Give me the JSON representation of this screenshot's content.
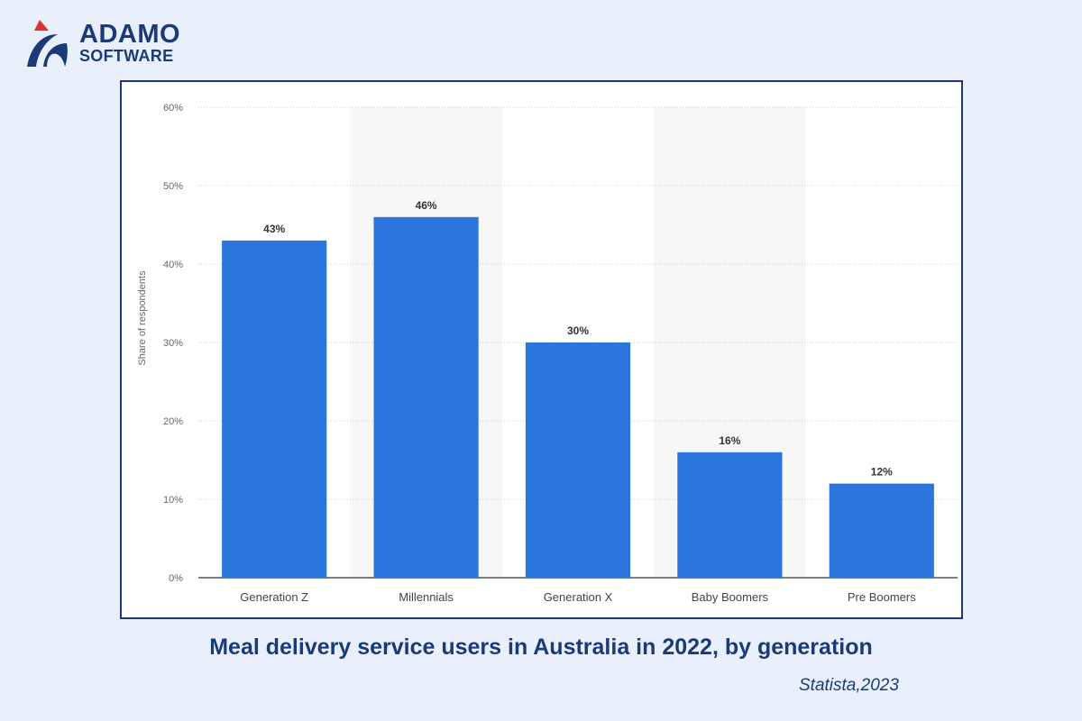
{
  "logo": {
    "line1": "ADAMO",
    "line2": "SOFTWARE",
    "colors": {
      "navy": "#1b3a7a",
      "red": "#e0312f"
    }
  },
  "caption": "Meal delivery service users in Australia in 2022, by generation",
  "source": "Statista,2023",
  "chart_data": {
    "type": "bar",
    "categories": [
      "Generation Z",
      "Millennials",
      "Generation X",
      "Baby Boomers",
      "Pre Boomers"
    ],
    "values": [
      43,
      46,
      30,
      16,
      12
    ],
    "data_labels": [
      "43%",
      "46%",
      "30%",
      "16%",
      "12%"
    ],
    "ylabel": "Share of respondents",
    "ylim": [
      0,
      60
    ],
    "yticks": [
      0,
      10,
      20,
      30,
      40,
      50,
      60
    ],
    "ytick_labels": [
      "0%",
      "10%",
      "20%",
      "30%",
      "40%",
      "50%",
      "60%"
    ],
    "grid": true,
    "bar_color": "#2a76dd"
  }
}
